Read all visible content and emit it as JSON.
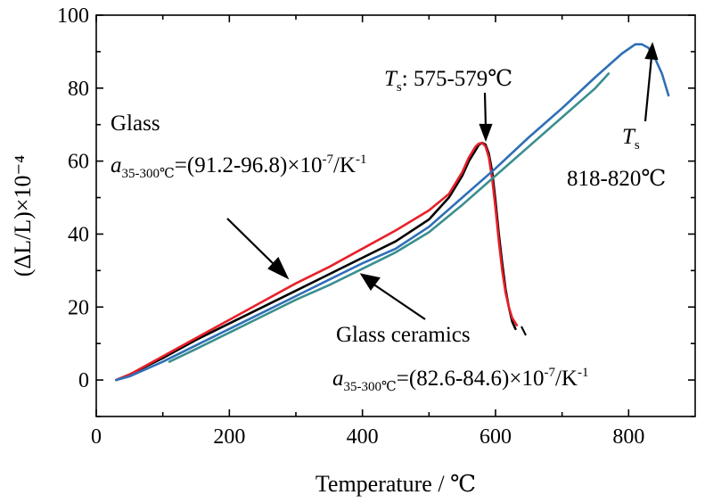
{
  "chart_data": {
    "type": "line",
    "xlabel": "Temperature / ℃",
    "ylabel": "(ΔL/L)×10⁻⁴",
    "xlim": [
      0,
      900
    ],
    "ylim": [
      -10,
      100
    ],
    "xticks": [
      0,
      200,
      400,
      600,
      800
    ],
    "yticks": [
      0,
      20,
      40,
      60,
      80,
      100
    ],
    "grid": false,
    "legend": "none",
    "series": [
      {
        "color": "#000000",
        "x": [
          30,
          50,
          100,
          150,
          200,
          250,
          300,
          350,
          400,
          450,
          500,
          530,
          550,
          560,
          570,
          575,
          580,
          585,
          590,
          595,
          600,
          605,
          610,
          615,
          620,
          625,
          630
        ],
        "y": [
          0,
          1.5,
          6,
          11,
          15.5,
          20,
          24.5,
          29,
          33.5,
          38,
          44,
          50,
          56,
          60,
          63,
          64.5,
          65,
          64.5,
          62,
          57,
          49,
          40,
          32,
          25,
          20,
          16,
          14
        ]
      },
      {
        "color": "#e8202a",
        "x": [
          30,
          50,
          100,
          150,
          200,
          250,
          300,
          350,
          400,
          450,
          500,
          530,
          550,
          560,
          570,
          575,
          580,
          585,
          590,
          595,
          600,
          605,
          610,
          615,
          620,
          625,
          632
        ],
        "y": [
          0,
          1.5,
          6.5,
          11.5,
          16.5,
          21.5,
          26.5,
          31,
          36,
          41,
          46.5,
          51,
          57,
          61,
          64,
          64.8,
          65,
          64,
          61,
          55,
          47,
          38,
          30,
          24,
          20,
          17,
          15
        ]
      },
      {
        "color": "#2f6fb6",
        "x": [
          30,
          50,
          100,
          150,
          200,
          250,
          300,
          350,
          400,
          450,
          500,
          550,
          600,
          650,
          700,
          750,
          790,
          810,
          820,
          830,
          840,
          850,
          860
        ],
        "y": [
          0,
          1,
          5,
          9.5,
          14,
          18.5,
          23,
          27.5,
          32,
          36,
          42,
          50,
          58,
          66.5,
          74.5,
          83,
          89.5,
          92,
          92,
          91,
          88,
          84,
          78
        ]
      },
      {
        "color": "#3b8e8e",
        "x": [
          110,
          150,
          200,
          250,
          300,
          350,
          400,
          450,
          500,
          550,
          600,
          650,
          700,
          750,
          770
        ],
        "y": [
          5,
          8.5,
          13,
          17.5,
          22,
          26,
          30.5,
          35,
          40.5,
          48,
          56,
          64,
          72,
          80,
          84
        ]
      }
    ],
    "annotations": {
      "glass": "Glass",
      "glass_alpha_sym": "a",
      "glass_alpha_sub": "35-300℃",
      "glass_alpha_val": "=(91.2-96.8)×10",
      "glass_alpha_exp": "-7",
      "glass_alpha_unit": "/K",
      "glass_alpha_exp2": "-1",
      "ts1_sym": "T",
      "ts1_sub": "s",
      "ts1_val": ": 575-579℃",
      "ts2_sym": "T",
      "ts2_sub": "s",
      "ts2_val": "818-820℃",
      "gc": "Glass ceramics",
      "gc_alpha_sym": "a",
      "gc_alpha_sub": "35-300℃",
      "gc_alpha_val": "=(82.6-84.6)×10",
      "gc_alpha_exp": "-7",
      "gc_alpha_unit": "/K",
      "gc_alpha_exp2": "-1"
    }
  }
}
